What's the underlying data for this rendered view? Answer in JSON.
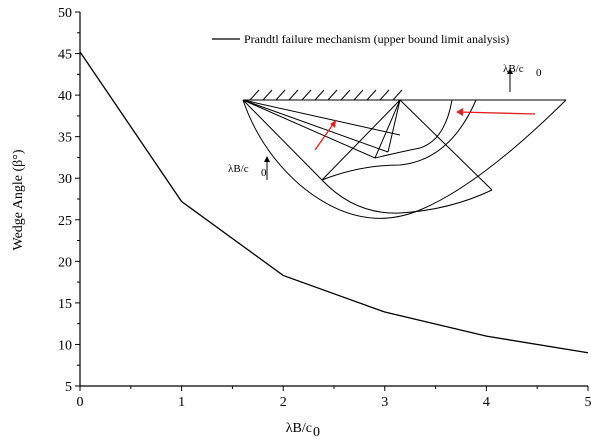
{
  "chart_data": {
    "type": "line",
    "x": [
      0,
      1,
      2,
      3,
      4,
      5
    ],
    "series": [
      {
        "name": "Prandtl failure mechanism (upper bound limit analysis)",
        "values": [
          45.2,
          27.2,
          18.3,
          13.9,
          11.0,
          9.0
        ],
        "color": "#000000"
      }
    ],
    "xlabel": "λB/c",
    "xlabel_sub": "0",
    "ylabel": "Wedge Angle (β°)",
    "xlim": [
      0,
      5
    ],
    "ylim": [
      5,
      50
    ],
    "xticks": [
      0,
      1,
      2,
      3,
      4,
      5
    ],
    "yticks": [
      5,
      10,
      15,
      20,
      25,
      30,
      35,
      40,
      45,
      50
    ],
    "grid": false,
    "legend_position": "top-right"
  },
  "inset": {
    "label_top": "λB/c",
    "label_top_sub": "0",
    "label_left": "λB/c",
    "label_left_sub": "0",
    "arrow_color": "#e02020"
  }
}
